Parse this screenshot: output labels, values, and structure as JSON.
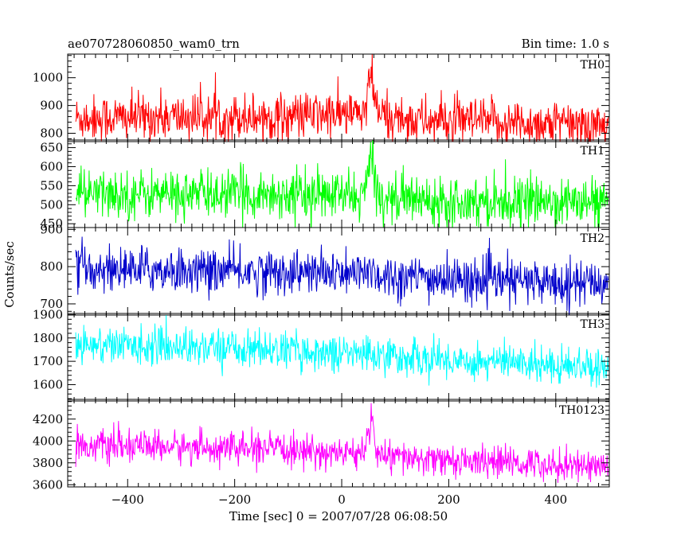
{
  "chart_data": {
    "type": "line",
    "title": "ae070728060850_wam0_trn",
    "bin_time": "Bin time: 1.0 s",
    "xlabel": "Time [sec] 0 = 2007/07/28 06:08:50",
    "ylabel": "Counts/sec",
    "xlim": [
      -512,
      500
    ],
    "x_ticks": [
      -400,
      -200,
      0,
      200,
      400
    ],
    "x_tick_labels": [
      "−400",
      "−200",
      "0",
      "200",
      "400"
    ],
    "grid": false,
    "panels": [
      {
        "name": "TH0",
        "color": "#ff0000",
        "ylim": [
          770,
          1085
        ],
        "y_ticks": [
          800,
          900,
          1000
        ],
        "y_tick_labels": [
          "800",
          "900",
          "1000"
        ],
        "baseline": [
          [
            -500,
            855
          ],
          [
            -100,
            862
          ],
          [
            40,
            870
          ],
          [
            150,
            845
          ],
          [
            500,
            830
          ]
        ],
        "noise": 42,
        "peak": {
          "t": 55,
          "height": 150,
          "width": 6
        }
      },
      {
        "name": "TH1",
        "color": "#00ff00",
        "ylim": [
          440,
          670
        ],
        "y_ticks": [
          450,
          500,
          550,
          600,
          650
        ],
        "y_tick_labels": [
          "450",
          "500",
          "550",
          "600",
          "650"
        ],
        "baseline": [
          [
            -500,
            528
          ],
          [
            -100,
            528
          ],
          [
            40,
            522
          ],
          [
            150,
            515
          ],
          [
            500,
            505
          ]
        ],
        "noise": 32,
        "peak": {
          "t": 55,
          "height": 115,
          "width": 6
        }
      },
      {
        "name": "TH2",
        "color": "#0000cc",
        "ylim": [
          670,
          905
        ],
        "y_ticks": [
          700,
          800,
          900
        ],
        "y_tick_labels": [
          "700",
          "800",
          "900"
        ],
        "baseline": [
          [
            -500,
            795
          ],
          [
            -100,
            785
          ],
          [
            40,
            778
          ],
          [
            200,
            765
          ],
          [
            500,
            755
          ]
        ],
        "noise": 30,
        "peak": {
          "t": 55,
          "height": 30,
          "width": 5
        }
      },
      {
        "name": "TH3",
        "color": "#00ffff",
        "ylim": [
          1530,
          1905
        ],
        "y_ticks": [
          1600,
          1700,
          1800,
          1900
        ],
        "y_tick_labels": [
          "1600",
          "1700",
          "1800",
          "1900"
        ],
        "baseline": [
          [
            -500,
            1775
          ],
          [
            -200,
            1758
          ],
          [
            0,
            1735
          ],
          [
            200,
            1705
          ],
          [
            500,
            1680
          ]
        ],
        "noise": 40,
        "peak": {
          "t": 55,
          "height": 25,
          "width": 5
        }
      },
      {
        "name": "TH0123",
        "color": "#ff00ff",
        "ylim": [
          3580,
          4380
        ],
        "y_ticks": [
          3600,
          3800,
          4000,
          4200
        ],
        "y_tick_labels": [
          "3600",
          "3800",
          "4000",
          "4200"
        ],
        "baseline": [
          [
            -500,
            3960
          ],
          [
            -200,
            3935
          ],
          [
            0,
            3890
          ],
          [
            150,
            3830
          ],
          [
            500,
            3770
          ]
        ],
        "noise": 72,
        "peak": {
          "t": 55,
          "height": 380,
          "width": 6
        }
      }
    ]
  }
}
